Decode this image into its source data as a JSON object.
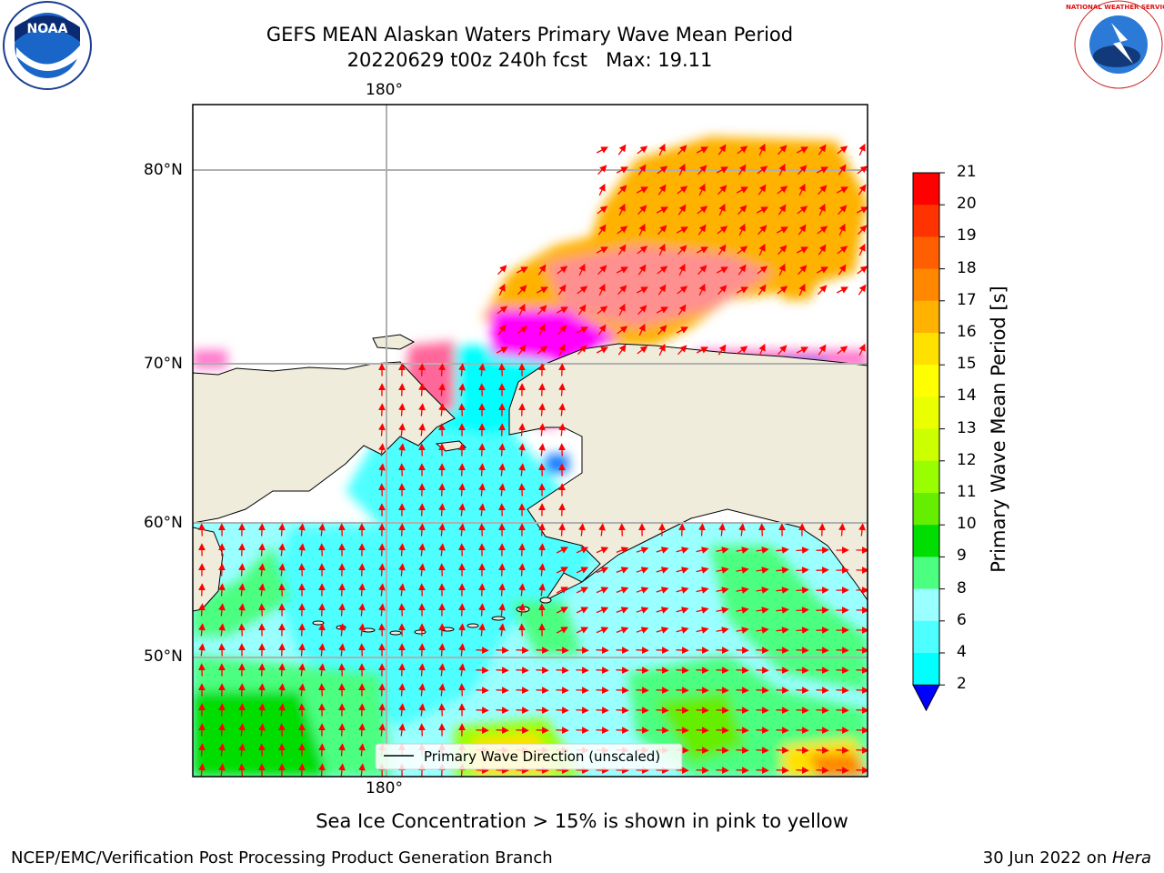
{
  "title": {
    "line1": "GEFS MEAN Alaskan Waters Primary Wave Mean Period",
    "line2": "20220629 t00z 240h fcst   Max: 19.11"
  },
  "axes": {
    "top_lon_label": "180°",
    "bottom_lon_label": "180°",
    "lat_labels": [
      "80°N",
      "70°N",
      "60°N",
      "50°N"
    ]
  },
  "legend": {
    "text": "Primary Wave Direction (unscaled)"
  },
  "colorbar": {
    "label": "Primary Wave Mean Period [s]",
    "ticks": [
      "21",
      "20",
      "19",
      "18",
      "17",
      "16",
      "15",
      "14",
      "13",
      "12",
      "11",
      "10",
      "9",
      "8",
      "6",
      "4",
      "2"
    ],
    "colors": [
      "#ff0000",
      "#ff3300",
      "#ff5f00",
      "#ff8800",
      "#ffb200",
      "#ffe100",
      "#ffff00",
      "#eaff00",
      "#ccff00",
      "#99ff00",
      "#66ee00",
      "#00dd00",
      "#4cff80",
      "#99ffff",
      "#4dffff",
      "#00ffff",
      "#1177ff"
    ],
    "extend_color": "#0000ff"
  },
  "caption": "Sea Ice Concentration > 15% is shown in pink to yellow",
  "footer": {
    "left": "NCEP/EMC/Verification Post Processing Product Generation Branch",
    "right_prefix": "30 Jun 2022 on ",
    "right_host": "Hera"
  },
  "logos": {
    "left": "NOAA",
    "right": "NATIONAL WEATHER SERVICE"
  },
  "colors": {
    "land": "#efecdc",
    "arrow": "#ff0000",
    "grid": "#b0b0b0"
  }
}
